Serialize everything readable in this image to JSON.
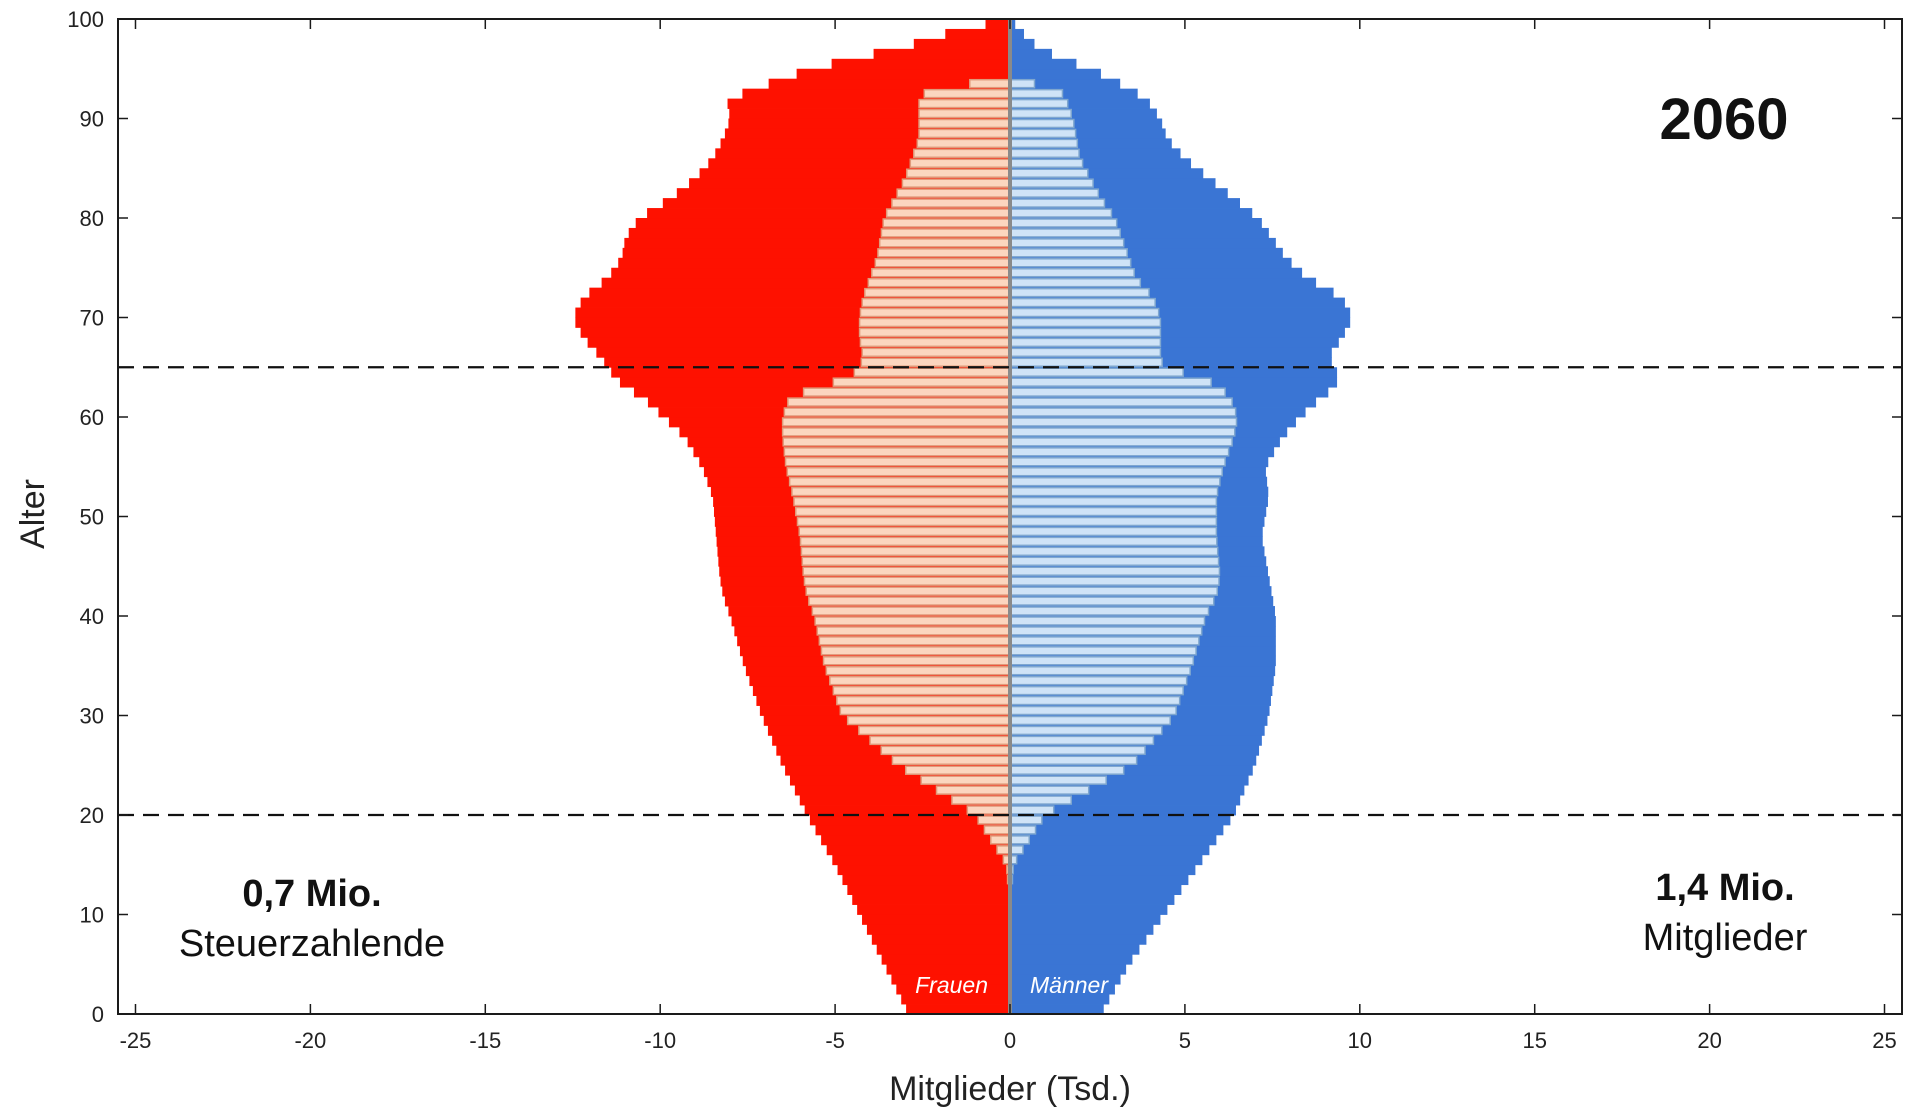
{
  "chart_data": {
    "type": "bar",
    "subtype": "population-pyramid",
    "year_label": "2060",
    "xlabel": "Mitglieder (Tsd.)",
    "ylabel": "Alter",
    "xlim": [
      -25.5,
      25.5
    ],
    "ylim": [
      0,
      100
    ],
    "x_ticks": [
      -25,
      -20,
      -15,
      -10,
      -5,
      0,
      5,
      10,
      15,
      20,
      25
    ],
    "x_tick_labels": [
      "-25",
      "-20",
      "-15",
      "-10",
      "-5",
      "0",
      "5",
      "10",
      "15",
      "20",
      "25"
    ],
    "y_ticks": [
      0,
      10,
      20,
      30,
      40,
      50,
      60,
      70,
      80,
      90,
      100
    ],
    "y_tick_labels": [
      "0",
      "10",
      "20",
      "30",
      "40",
      "50",
      "60",
      "70",
      "80",
      "90",
      "100"
    ],
    "reference_lines": [
      {
        "axis": "y",
        "value": 20,
        "style": "dashed"
      },
      {
        "axis": "y",
        "value": 65,
        "style": "dashed"
      }
    ],
    "legend": "none",
    "grid": false,
    "colors": {
      "women_members": "#fe1100",
      "men_members": "#3a75d4",
      "women_taxpayers_fill": "#fbd6bf",
      "women_taxpayers_edge": "#e09a7a",
      "men_taxpayers_fill": "#cfe3f7",
      "men_taxpayers_edge": "#7fa7cf"
    },
    "age_anchors": [
      0,
      5,
      10,
      15,
      20,
      25,
      30,
      35,
      40,
      42,
      44,
      48,
      52,
      55,
      58,
      60,
      62,
      63,
      64,
      65,
      66,
      68,
      70,
      72,
      74,
      76,
      78,
      80,
      82,
      84,
      86,
      88,
      90,
      92,
      93,
      94,
      95,
      96,
      97,
      98,
      99,
      100
    ],
    "series": [
      {
        "name": "Frauen",
        "values": [
          2.9,
          3.6,
          4.3,
          5.0,
          5.8,
          6.5,
          7.1,
          7.6,
          8.0,
          8.2,
          8.3,
          8.4,
          8.5,
          8.8,
          9.3,
          9.9,
          10.5,
          11.0,
          11.3,
          11.5,
          11.7,
          12.2,
          12.5,
          12.2,
          11.5,
          11.1,
          11.0,
          10.6,
          9.7,
          9.0,
          8.5,
          8.2,
          8.0,
          8.1,
          7.2,
          6.6,
          5.6,
          4.6,
          3.2,
          2.3,
          1.4,
          0
        ]
      },
      {
        "name": "Männer",
        "values": [
          2.6,
          3.4,
          4.4,
          5.4,
          6.4,
          7.0,
          7.4,
          7.6,
          7.6,
          7.5,
          7.4,
          7.2,
          7.4,
          7.3,
          7.8,
          8.3,
          8.9,
          9.3,
          9.4,
          9.3,
          9.1,
          9.5,
          9.8,
          9.5,
          8.5,
          7.9,
          7.5,
          7.1,
          6.4,
          5.7,
          5.0,
          4.5,
          4.3,
          3.9,
          3.4,
          2.9,
          2.3,
          1.5,
          0.9,
          0.5,
          0.3,
          0
        ]
      },
      {
        "name": "Steuerzahlende Frauen",
        "values": [
          0,
          0,
          0,
          0.1,
          1.0,
          3.2,
          4.8,
          5.3,
          5.6,
          5.8,
          5.9,
          6.0,
          6.2,
          6.4,
          6.5,
          6.5,
          6.3,
          5.5,
          4.6,
          4.3,
          4.2,
          4.3,
          4.3,
          4.2,
          4.0,
          3.8,
          3.7,
          3.6,
          3.3,
          3.0,
          2.8,
          2.6,
          2.6,
          2.6,
          2.3,
          0,
          0,
          0,
          0,
          0,
          0,
          0
        ]
      },
      {
        "name": "Steuerzahlende Männer",
        "values": [
          0,
          0,
          0,
          0.1,
          1.0,
          3.5,
          4.7,
          5.2,
          5.6,
          5.9,
          6.0,
          5.9,
          5.9,
          6.1,
          6.4,
          6.5,
          6.3,
          6.0,
          5.5,
          4.4,
          4.3,
          4.3,
          4.3,
          4.1,
          3.6,
          3.4,
          3.2,
          3.0,
          2.6,
          2.3,
          2.0,
          1.9,
          1.8,
          1.6,
          1.4,
          0,
          0,
          0,
          0,
          0,
          0,
          0
        ]
      }
    ],
    "in_plot_labels": {
      "women": "Frauen",
      "men": "Männer"
    },
    "annotations": {
      "left_value": "0,7 Mio.",
      "left_caption": "Steuerzahlende",
      "right_value": "1,4 Mio.",
      "right_caption": "Mitglieder"
    }
  }
}
